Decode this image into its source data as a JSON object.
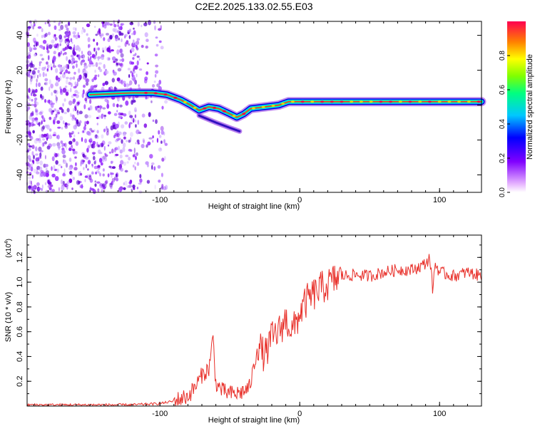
{
  "title": "C2E2.2025.133.02.55.E03",
  "chart_data": [
    {
      "type": "heatmap",
      "xlabel": "Height of straight line (km)",
      "ylabel": "Frequency (Hz)",
      "xlim": [
        -195,
        130
      ],
      "ylim": [
        -50,
        48
      ],
      "xticks": [
        -100,
        0,
        100
      ],
      "yticks": [
        -40,
        -20,
        0,
        20,
        40
      ],
      "colorbar": {
        "label": "Normalized spectral amplitude",
        "range": [
          0,
          1
        ],
        "ticks": [
          0.0,
          0.2,
          0.4,
          0.6,
          0.8
        ],
        "tick_labels": [
          "0.0",
          "0.2",
          "0.4",
          "0.6",
          "0.8"
        ]
      },
      "ridge": {
        "x": [
          -150,
          -120,
          -105,
          -95,
          -85,
          -78,
          -72,
          -65,
          -58,
          -50,
          -45,
          -40,
          -35,
          -25,
          -15,
          -8,
          0,
          20,
          50,
          85,
          100,
          130
        ],
        "y": [
          6,
          7,
          7,
          6,
          3,
          0,
          -3,
          -1,
          -2,
          -5,
          -7,
          -5,
          -2,
          -1,
          0,
          2,
          2,
          2,
          2,
          2,
          2,
          2
        ]
      },
      "secondary_branch": {
        "x": [
          -72,
          -60,
          -50,
          -43
        ],
        "y": [
          -6,
          -10,
          -13,
          -15
        ]
      },
      "noise_region_xlim": [
        -195,
        -95
      ]
    },
    {
      "type": "line",
      "xlabel": "Height of straight line (km)",
      "ylabel": "SNR (10 * v/v)",
      "scale_label": "(x10",
      "scale_exp": "4",
      "xlim": [
        -195,
        130
      ],
      "ylim": [
        0,
        1.38
      ],
      "xticks": [
        -100,
        0,
        100
      ],
      "yticks": [
        0.2,
        0.4,
        0.6,
        0.8,
        1.0,
        1.2
      ],
      "color": "#e8302a",
      "series": [
        {
          "x": [
            -195,
            -150,
            -120,
            -100,
            -90,
            -80,
            -75,
            -70,
            -65,
            -62,
            -60,
            -55,
            -50,
            -45,
            -40,
            -36,
            -33,
            -30,
            -25,
            -20,
            -15,
            -10,
            -5,
            0,
            5,
            10,
            15,
            20,
            25,
            30,
            40,
            50,
            60,
            70,
            80,
            85,
            90,
            93,
            95,
            97,
            100,
            110,
            120,
            130
          ],
          "y": [
            0.01,
            0.01,
            0.01,
            0.02,
            0.04,
            0.08,
            0.15,
            0.25,
            0.3,
            0.55,
            0.18,
            0.12,
            0.1,
            0.1,
            0.12,
            0.15,
            0.3,
            0.5,
            0.4,
            0.55,
            0.6,
            0.7,
            0.6,
            0.75,
            0.85,
            0.9,
            0.95,
            0.98,
            1.02,
            1.05,
            1.06,
            1.05,
            1.08,
            1.1,
            1.1,
            1.12,
            1.15,
            1.2,
            0.95,
            1.15,
            1.08,
            1.05,
            1.08,
            1.05
          ]
        }
      ]
    }
  ]
}
